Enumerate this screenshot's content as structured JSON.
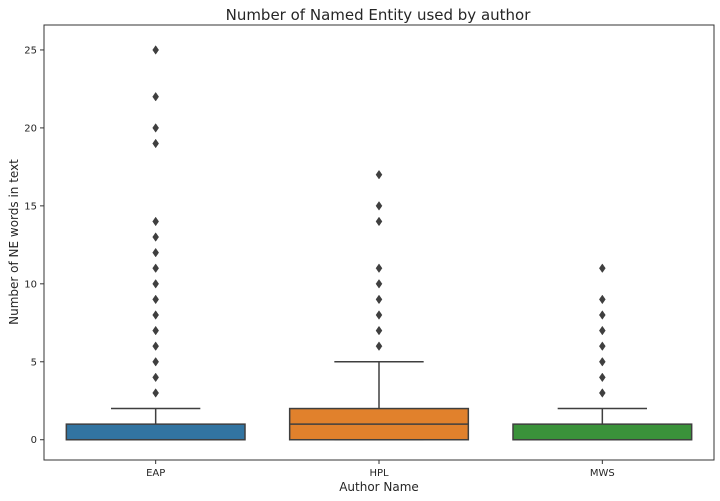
{
  "chart_data": {
    "type": "box",
    "title": "Number of Named Entity used by author",
    "xlabel": "Author Name",
    "ylabel": "Number of NE words in text",
    "ylim": [
      -1.3,
      26.6
    ],
    "yticks": [
      0,
      5,
      10,
      15,
      20,
      25
    ],
    "categories": [
      "EAP",
      "HPL",
      "MWS"
    ],
    "boxes": [
      {
        "category": "EAP",
        "color": "#3274a1",
        "whisker_low": 0,
        "q1": 0,
        "median": 0,
        "q3": 1,
        "whisker_high": 2,
        "outliers": [
          3,
          4,
          5,
          6,
          7,
          8,
          9,
          10,
          11,
          12,
          13,
          14,
          19,
          20,
          22,
          25
        ]
      },
      {
        "category": "HPL",
        "color": "#e1812c",
        "whisker_low": 0,
        "q1": 0,
        "median": 1,
        "q3": 2,
        "whisker_high": 5,
        "outliers": [
          6,
          7,
          8,
          9,
          10,
          11,
          14,
          15,
          17
        ]
      },
      {
        "category": "MWS",
        "color": "#3a923a",
        "whisker_low": 0,
        "q1": 0,
        "median": 0,
        "q3": 1,
        "whisker_high": 2,
        "outliers": [
          3,
          4,
          5,
          6,
          7,
          8,
          9,
          11
        ]
      }
    ]
  }
}
